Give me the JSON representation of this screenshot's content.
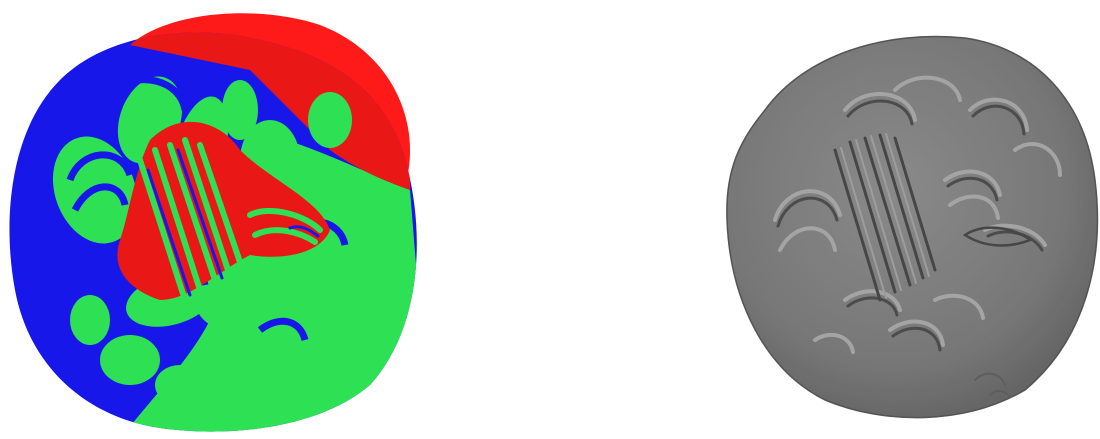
{
  "figure": {
    "background": "#ffffff",
    "panels": [
      {
        "id": "segmented-coin-render",
        "kind": "3D surface render with region segmentation",
        "colors": {
          "region_a": "#ff1a1a",
          "region_b": "#1a1aff",
          "region_c": "#33f55c"
        }
      },
      {
        "id": "shaded-coin-render",
        "kind": "3D surface render, grey shading",
        "colors": {
          "surface": "#8a8a8a",
          "highlight": "#b0b0b0",
          "shadow": "#4d4d4d"
        }
      }
    ]
  }
}
